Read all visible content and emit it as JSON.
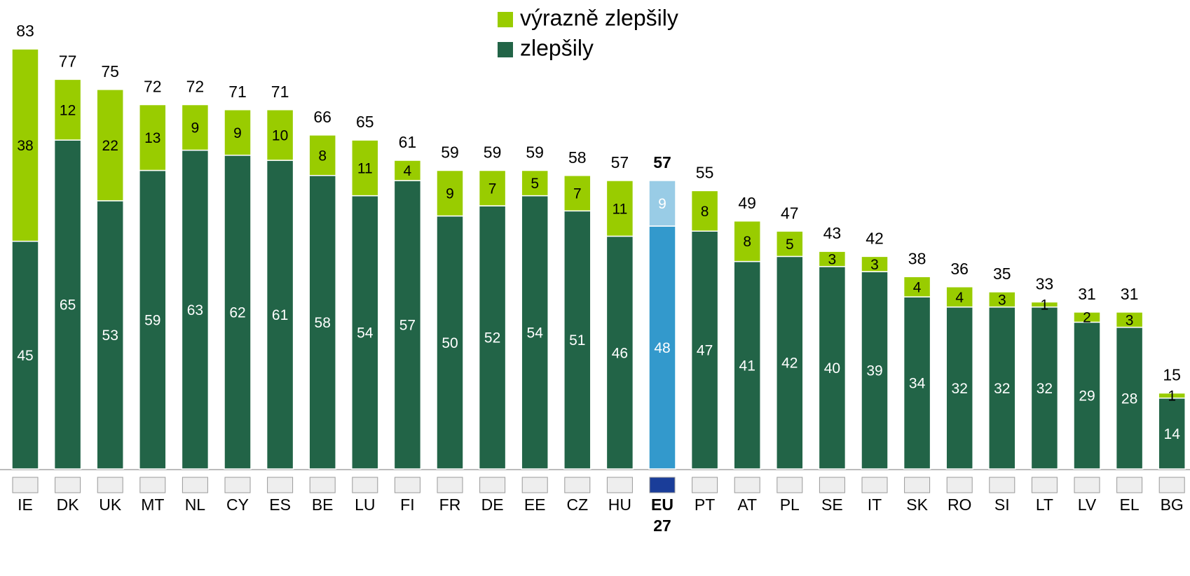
{
  "chart_data": {
    "type": "stacked_bar",
    "categories": [
      "IE",
      "DK",
      "UK",
      "MT",
      "NL",
      "CY",
      "ES",
      "BE",
      "LU",
      "FI",
      "FR",
      "DE",
      "EE",
      "CZ",
      "HU",
      "EU 27",
      "PT",
      "AT",
      "PL",
      "SE",
      "IT",
      "SK",
      "RO",
      "SI",
      "LT",
      "LV",
      "EL",
      "BG"
    ],
    "series": [
      {
        "name": "zlepšily",
        "color": "#226447",
        "highlight_color": "#3399cc",
        "values": [
          45,
          65,
          53,
          59,
          63,
          62,
          61,
          58,
          54,
          57,
          50,
          52,
          54,
          51,
          46,
          48,
          47,
          41,
          42,
          40,
          39,
          34,
          32,
          32,
          32,
          29,
          28,
          14
        ]
      },
      {
        "name": "výrazně zlepšily",
        "color": "#99cc00",
        "highlight_color": "#99cce6",
        "values": [
          38,
          12,
          22,
          13,
          9,
          9,
          10,
          8,
          11,
          4,
          9,
          7,
          5,
          7,
          11,
          9,
          8,
          8,
          5,
          3,
          3,
          4,
          4,
          3,
          1,
          2,
          3,
          1
        ]
      }
    ],
    "totals": [
      83,
      77,
      75,
      72,
      72,
      71,
      71,
      66,
      65,
      61,
      59,
      59,
      59,
      58,
      57,
      57,
      55,
      49,
      47,
      43,
      42,
      38,
      36,
      35,
      33,
      31,
      31,
      15
    ],
    "highlight_category": "EU 27"
  }
}
